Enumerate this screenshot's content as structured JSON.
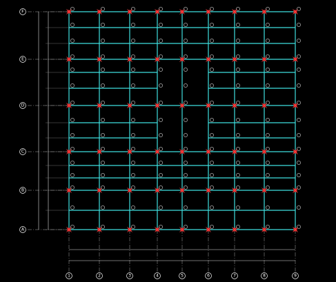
{
  "grid": {
    "rows": [
      "F",
      "E",
      "D",
      "C",
      "B",
      "A"
    ],
    "columns": [
      "1",
      "2",
      "3",
      "4",
      "5",
      "6",
      "7",
      "8",
      "9"
    ]
  }
}
